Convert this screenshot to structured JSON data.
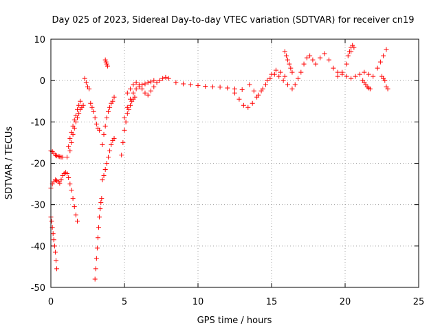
{
  "chart_data": {
    "type": "scatter",
    "title": "Day 025 of 2023, Sidereal Day-to-day VTEC variation (SDTVAR) for receiver cn19",
    "xlabel": "GPS time / hours",
    "ylabel": "SDTVAR / TECUs",
    "xlim": [
      0,
      25
    ],
    "ylim": [
      -50,
      10
    ],
    "xticks": [
      0,
      5,
      10,
      15,
      20,
      25
    ],
    "yticks": [
      -50,
      -40,
      -30,
      -20,
      -10,
      0,
      10
    ],
    "grid": true,
    "marker": "+",
    "color": "#ff0000",
    "series": [
      {
        "name": "s1",
        "x": [
          0.0,
          0.1,
          0.2,
          0.3,
          0.4,
          0.5,
          0.6,
          0.7,
          0.8
        ],
        "y": [
          -17,
          -17.2,
          -17.6,
          -18,
          -18.2,
          -18.3,
          -18.4,
          -18.5,
          -18.5
        ]
      },
      {
        "name": "s2",
        "x": [
          0.0,
          0.1,
          0.2,
          0.3,
          0.4,
          0.5,
          0.6,
          0.7,
          0.8,
          0.9,
          1.0,
          1.1,
          1.2,
          1.3,
          1.4,
          1.5,
          1.6,
          1.7,
          1.8
        ],
        "y": [
          -26,
          -25,
          -24.5,
          -24,
          -24.2,
          -24.5,
          -24.8,
          -24,
          -23,
          -22.5,
          -22.2,
          -22.5,
          -23.5,
          -25,
          -26.5,
          -28.5,
          -30.5,
          -32.5,
          -34
        ]
      },
      {
        "name": "s3",
        "x": [
          0.0,
          0.05,
          0.1,
          0.15,
          0.2,
          0.25,
          0.3,
          0.35,
          0.4
        ],
        "y": [
          -33,
          -34,
          -35.5,
          -37,
          -38.5,
          -40,
          -41.5,
          -43.5,
          -45.5
        ]
      },
      {
        "name": "s4",
        "x": [
          1.1,
          1.2,
          1.3,
          1.4,
          1.5,
          1.6,
          1.7,
          1.8,
          1.9,
          2.0
        ],
        "y": [
          -18.5,
          -16,
          -14,
          -12.5,
          -11,
          -9.5,
          -8.5,
          -7,
          -6,
          -5
        ]
      },
      {
        "name": "s5",
        "x": [
          1.3,
          1.4,
          1.5,
          1.6,
          1.7,
          1.8,
          1.9,
          2.0,
          2.1,
          2.2
        ],
        "y": [
          -17,
          -15,
          -13,
          -11.5,
          -10,
          -9,
          -8,
          -7,
          -6.5,
          -6
        ]
      },
      {
        "name": "s6",
        "x": [
          2.3,
          2.4,
          2.5,
          2.6
        ],
        "y": [
          0.5,
          -0.5,
          -1.5,
          -2
        ]
      },
      {
        "name": "s7",
        "x": [
          2.7,
          2.8,
          2.9,
          3.0,
          3.1,
          3.2,
          3.3
        ],
        "y": [
          -5.5,
          -6.5,
          -7.5,
          -9,
          -10.5,
          -11.5,
          -12
        ]
      },
      {
        "name": "s8",
        "x": [
          3.0,
          3.05,
          3.1,
          3.15,
          3.2,
          3.25,
          3.3,
          3.35,
          3.4,
          3.45
        ],
        "y": [
          -48,
          -45.5,
          -43,
          -40.5,
          -38,
          -35.5,
          -33,
          -31,
          -29.5,
          -28.5
        ]
      },
      {
        "name": "s9",
        "x": [
          3.7,
          3.75,
          3.8,
          3.85
        ],
        "y": [
          5,
          4.5,
          4,
          3.5
        ]
      },
      {
        "name": "s10",
        "x": [
          3.5,
          3.6,
          3.7,
          3.8,
          3.9,
          4.0,
          4.1,
          4.2,
          4.3
        ],
        "y": [
          -24,
          -23,
          -21.5,
          -20,
          -18.5,
          -17,
          -15.5,
          -14.5,
          -14
        ]
      },
      {
        "name": "s11",
        "x": [
          3.5,
          3.6,
          3.7,
          3.8,
          3.9,
          4.0,
          4.1,
          4.2,
          4.3
        ],
        "y": [
          -15.5,
          -13,
          -11,
          -9,
          -7.5,
          -6.5,
          -5.5,
          -5,
          -4
        ]
      },
      {
        "name": "s12",
        "x": [
          4.8,
          4.9,
          5.0,
          5.1,
          5.2,
          5.3,
          5.4,
          5.5,
          5.6,
          5.7
        ],
        "y": [
          -18,
          -15,
          -12,
          -10,
          -8,
          -7,
          -6,
          -5,
          -4.5,
          -4
        ]
      },
      {
        "name": "s13",
        "x": [
          5.0,
          5.2,
          5.4,
          5.6,
          5.8,
          6.0,
          6.2,
          6.4,
          6.6,
          6.8,
          7.0
        ],
        "y": [
          -9,
          -6.5,
          -4.5,
          -3,
          -2,
          -1.5,
          -1,
          -0.8,
          -0.5,
          -0.3,
          0
        ]
      },
      {
        "name": "s14",
        "x": [
          5.2,
          5.4,
          5.6,
          5.8,
          6.0,
          6.2,
          6.4,
          6.6,
          6.8,
          7.0,
          7.2,
          7.4,
          7.6,
          7.8,
          8.0
        ],
        "y": [
          -3,
          -2,
          -1,
          -0.5,
          -1,
          -2,
          -3,
          -3.5,
          -2.5,
          -1.5,
          -0.5,
          0,
          0.5,
          0.8,
          0.5
        ]
      },
      {
        "name": "s15",
        "x": [
          8.5,
          9.0,
          9.5,
          10.0,
          10.5,
          11.0,
          11.5,
          12.0,
          12.5,
          13.0
        ],
        "y": [
          -0.5,
          -0.8,
          -1,
          -1.2,
          -1.4,
          -1.5,
          -1.6,
          -1.8,
          -2,
          -2.2
        ]
      },
      {
        "name": "s16",
        "x": [
          12.5,
          12.8,
          13.1,
          13.4,
          13.7,
          14.0,
          14.3,
          14.6,
          14.9,
          15.2,
          15.5,
          15.8,
          16.1
        ],
        "y": [
          -3,
          -4.5,
          -6,
          -6.5,
          -5.5,
          -4,
          -2.5,
          -1,
          0.5,
          1.5,
          1,
          0,
          -1
        ]
      },
      {
        "name": "s17",
        "x": [
          13.5,
          13.8,
          14.1,
          14.4,
          14.7,
          15.0,
          15.3,
          15.6,
          15.9
        ],
        "y": [
          -1,
          -2.5,
          -3.5,
          -2,
          0,
          1.5,
          2.5,
          2,
          1
        ]
      },
      {
        "name": "s18",
        "x": [
          15.9,
          16.0,
          16.1,
          16.2,
          16.3,
          16.4
        ],
        "y": [
          7,
          6,
          5,
          4,
          3,
          2
        ]
      },
      {
        "name": "s19",
        "x": [
          16.4,
          16.6,
          16.8,
          17.0,
          17.2,
          17.4,
          17.6,
          17.8
        ],
        "y": [
          -2,
          -1,
          0.5,
          2,
          4,
          5.5,
          6,
          5
        ]
      },
      {
        "name": "s20",
        "x": [
          18.0,
          18.3,
          18.6,
          18.9,
          19.2,
          19.5,
          19.8,
          20.1,
          20.4
        ],
        "y": [
          4,
          5.5,
          6.5,
          5,
          3,
          1,
          2,
          4,
          7
        ]
      },
      {
        "name": "s21",
        "x": [
          19.5,
          19.8,
          20.1,
          20.4,
          20.7,
          21.0,
          21.3,
          21.6,
          21.9
        ],
        "y": [
          2,
          1.5,
          1,
          0.5,
          1,
          1.5,
          2,
          1.5,
          1
        ]
      },
      {
        "name": "s22",
        "x": [
          20.2,
          20.3,
          20.4,
          20.5,
          20.6
        ],
        "y": [
          6,
          7,
          8,
          8.5,
          8
        ]
      },
      {
        "name": "s23",
        "x": [
          21.2,
          21.3,
          21.4,
          21.5,
          21.6,
          21.7
        ],
        "y": [
          0,
          -0.5,
          -1,
          -1.5,
          -1.8,
          -2
        ]
      },
      {
        "name": "s24",
        "x": [
          22.2,
          22.4,
          22.6,
          22.8
        ],
        "y": [
          3,
          4.5,
          6,
          7.5
        ]
      },
      {
        "name": "s25",
        "x": [
          22.5,
          22.6,
          22.7,
          22.8,
          22.9
        ],
        "y": [
          1,
          0.5,
          0,
          -1.5,
          -2
        ]
      }
    ]
  }
}
